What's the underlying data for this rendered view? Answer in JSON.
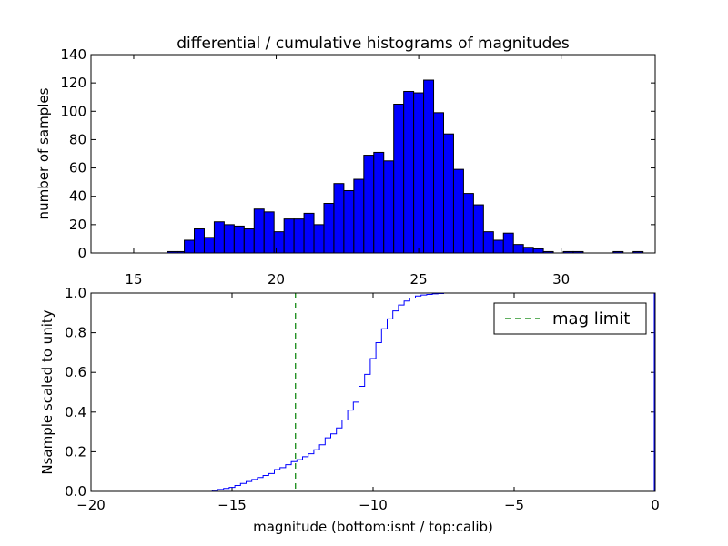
{
  "colors": {
    "bar_fill": "#0000ff",
    "bar_edge": "#000000",
    "step_line": "#0000ff",
    "limit_line": "#008000",
    "frame": "#000000"
  },
  "chart_data": [
    {
      "type": "bar",
      "title": "differential / cumulative histograms of magnitudes",
      "ylabel": "number of samples",
      "xlabel": "",
      "xlim": [
        13.5,
        33.3
      ],
      "ylim": [
        0,
        140
      ],
      "xticks": [
        15,
        20,
        25,
        30
      ],
      "yticks": [
        0,
        20,
        40,
        60,
        80,
        100,
        120,
        140
      ],
      "bin_width": 0.35,
      "bins": [
        {
          "x": 16.35,
          "value": 1
        },
        {
          "x": 16.7,
          "value": 1
        },
        {
          "x": 16.95,
          "value": 9
        },
        {
          "x": 17.3,
          "value": 17
        },
        {
          "x": 17.65,
          "value": 11
        },
        {
          "x": 18.0,
          "value": 22
        },
        {
          "x": 18.35,
          "value": 20
        },
        {
          "x": 18.7,
          "value": 19
        },
        {
          "x": 19.05,
          "value": 17
        },
        {
          "x": 19.4,
          "value": 31
        },
        {
          "x": 19.75,
          "value": 29
        },
        {
          "x": 20.1,
          "value": 15
        },
        {
          "x": 20.45,
          "value": 24
        },
        {
          "x": 20.8,
          "value": 24
        },
        {
          "x": 21.15,
          "value": 28
        },
        {
          "x": 21.5,
          "value": 20
        },
        {
          "x": 21.85,
          "value": 35
        },
        {
          "x": 22.2,
          "value": 49
        },
        {
          "x": 22.55,
          "value": 44
        },
        {
          "x": 22.9,
          "value": 52
        },
        {
          "x": 23.25,
          "value": 69
        },
        {
          "x": 23.6,
          "value": 71
        },
        {
          "x": 23.95,
          "value": 65
        },
        {
          "x": 24.3,
          "value": 105
        },
        {
          "x": 24.65,
          "value": 114
        },
        {
          "x": 25.0,
          "value": 113
        },
        {
          "x": 25.35,
          "value": 122
        },
        {
          "x": 25.7,
          "value": 99
        },
        {
          "x": 26.05,
          "value": 84
        },
        {
          "x": 26.4,
          "value": 59
        },
        {
          "x": 26.75,
          "value": 42
        },
        {
          "x": 27.1,
          "value": 34
        },
        {
          "x": 27.45,
          "value": 15
        },
        {
          "x": 27.8,
          "value": 9
        },
        {
          "x": 28.15,
          "value": 14
        },
        {
          "x": 28.5,
          "value": 6
        },
        {
          "x": 28.85,
          "value": 4
        },
        {
          "x": 29.2,
          "value": 3
        },
        {
          "x": 29.55,
          "value": 1
        },
        {
          "x": 30.25,
          "value": 1
        },
        {
          "x": 30.6,
          "value": 1
        },
        {
          "x": 32.0,
          "value": 1
        },
        {
          "x": 32.7,
          "value": 1
        }
      ]
    },
    {
      "type": "line",
      "step": true,
      "ylabel": "Nsample scaled to unity",
      "xlabel": "magnitude (bottom:isnt / top:calib)",
      "xlim": [
        -20,
        0
      ],
      "ylim": [
        0.0,
        1.0
      ],
      "xticks": [
        -20,
        -15,
        -10,
        -5,
        0
      ],
      "ytick_labels": [
        "0.0",
        "0.2",
        "0.4",
        "0.6",
        "0.8",
        "1.0"
      ],
      "xtick_labels": [
        "−20",
        "−15",
        "−10",
        "−5",
        "0"
      ],
      "series": [
        {
          "name": "cumulative",
          "x": [
            -20,
            -17.5,
            -16.0,
            -15.7,
            -15.5,
            -15.3,
            -15.1,
            -14.9,
            -14.7,
            -14.5,
            -14.3,
            -14.1,
            -13.9,
            -13.7,
            -13.5,
            -13.3,
            -13.1,
            -12.9,
            -12.7,
            -12.5,
            -12.3,
            -12.1,
            -11.9,
            -11.7,
            -11.5,
            -11.3,
            -11.1,
            -10.9,
            -10.7,
            -10.5,
            -10.3,
            -10.1,
            -9.9,
            -9.7,
            -9.5,
            -9.3,
            -9.1,
            -8.9,
            -8.7,
            -8.5,
            -8.3,
            -8.1,
            -7.9,
            -7.7,
            -7.5,
            -7.3,
            -7.1,
            -6.9,
            -6.7,
            -6.5,
            0
          ],
          "y": [
            0.0,
            0.0,
            0.0,
            0.005,
            0.01,
            0.015,
            0.02,
            0.03,
            0.04,
            0.05,
            0.06,
            0.07,
            0.08,
            0.09,
            0.11,
            0.12,
            0.135,
            0.15,
            0.16,
            0.175,
            0.19,
            0.21,
            0.235,
            0.27,
            0.29,
            0.32,
            0.36,
            0.41,
            0.45,
            0.53,
            0.59,
            0.67,
            0.75,
            0.82,
            0.87,
            0.91,
            0.94,
            0.96,
            0.975,
            0.985,
            0.99,
            0.993,
            0.996,
            0.998,
            1.0,
            1.0,
            1.0,
            1.0,
            1.0,
            1.0,
            1.0
          ]
        }
      ],
      "annotations": [
        {
          "type": "vline",
          "x": -12.75,
          "style": "dashed",
          "label": "mag limit"
        }
      ],
      "legend": {
        "position": "top-right",
        "entries": [
          "mag limit"
        ]
      }
    }
  ]
}
